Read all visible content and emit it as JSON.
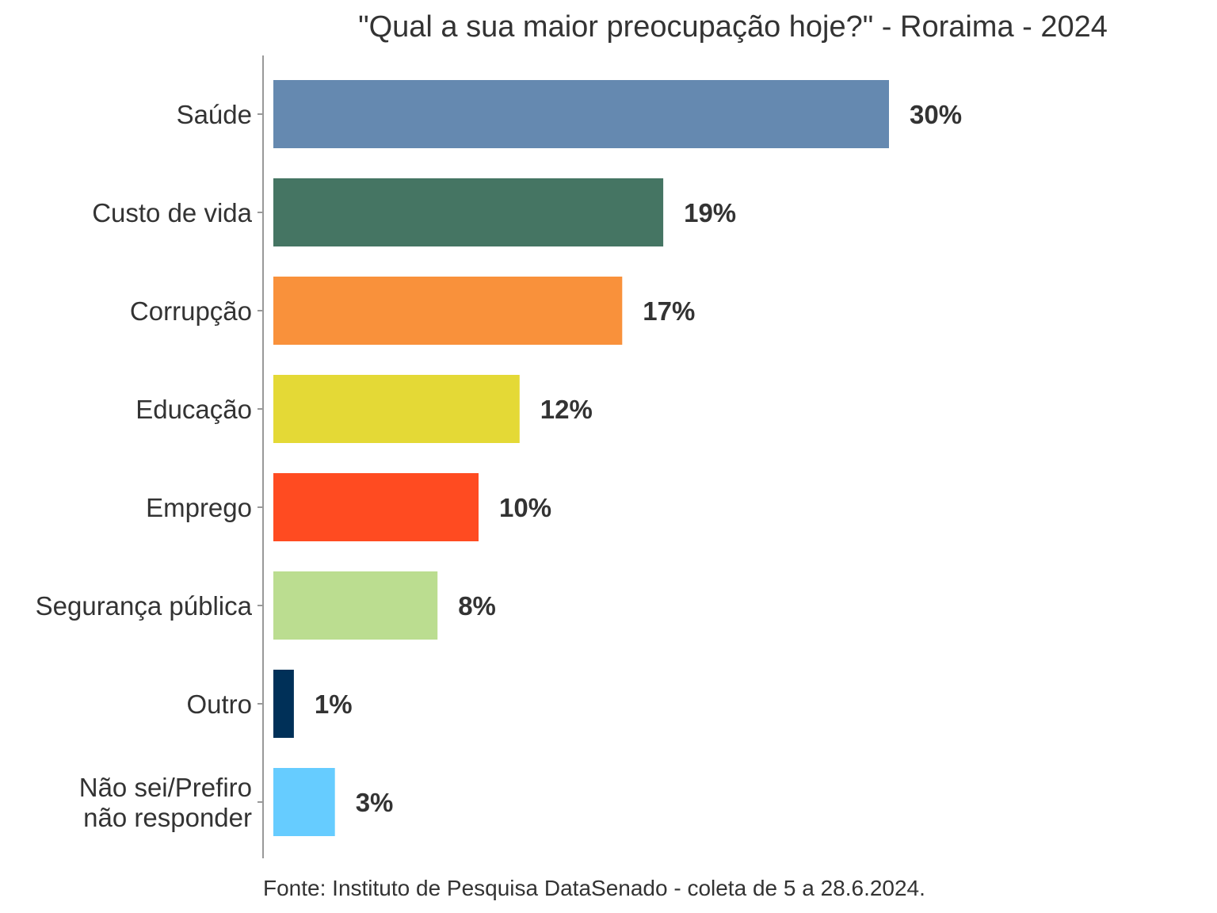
{
  "chart_data": {
    "type": "bar",
    "orientation": "horizontal",
    "title": "\"Qual a sua maior preocupação hoje?\" - Roraima - 2024",
    "categories": [
      [
        "Saúde"
      ],
      [
        "Custo de vida"
      ],
      [
        "Corrupção"
      ],
      [
        "Educação"
      ],
      [
        "Emprego"
      ],
      [
        "Segurança pública"
      ],
      [
        "Outro"
      ],
      [
        "Não sei/Prefiro",
        "não responder"
      ]
    ],
    "values": [
      30,
      19,
      17,
      12,
      10,
      8,
      1,
      3
    ],
    "value_labels": [
      "30%",
      "19%",
      "17%",
      "12%",
      "10%",
      "8%",
      "1%",
      "3%"
    ],
    "colors": [
      "#6589b0",
      "#457563",
      "#f9913b",
      "#e4d936",
      "#ff4b21",
      "#bbdd90",
      "#003058",
      "#66ccff"
    ],
    "xlim": [
      0,
      30
    ],
    "grid": false,
    "legend": "none",
    "source": "Fonte: Instituto de Pesquisa DataSenado - coleta de 5 a 28.6.2024."
  }
}
